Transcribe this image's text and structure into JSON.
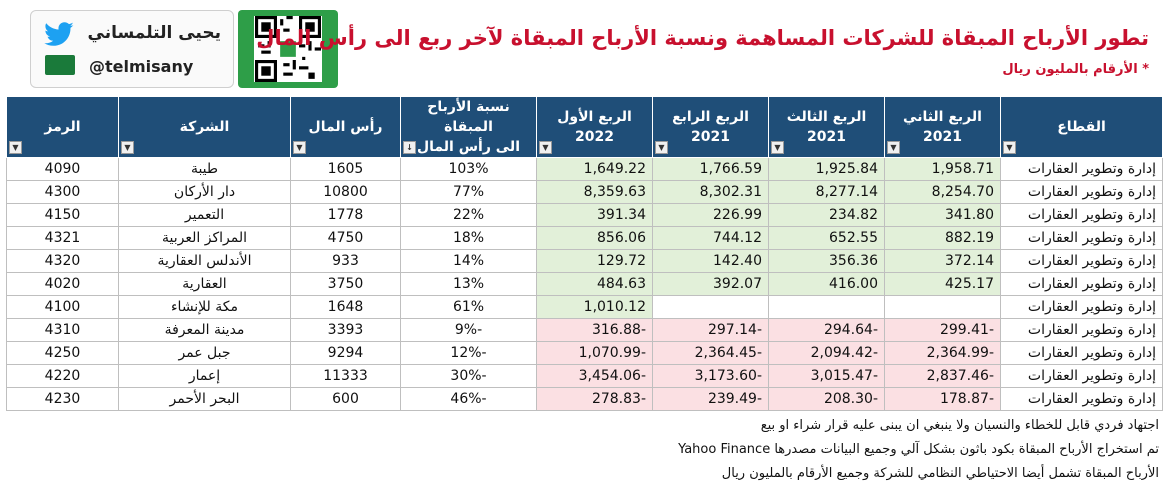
{
  "header": {
    "title": "تطور الأرباح المبقاة للشركات المساهمة ونسبة الأرباح المبقاة لآخر ربع الى رأس المال",
    "subtitle": "* الأرقام بالمليون ريال",
    "logo_name": "يحيى التلمساني",
    "logo_handle": "@telmisany"
  },
  "table": {
    "headers": {
      "sector": "القطاع",
      "q2_label": "الربع الثاني",
      "q2_year": "2021",
      "q3_label": "الربع الثالث",
      "q3_year": "2021",
      "q4_label": "الربع الرابع",
      "q4_year": "2021",
      "q1_label": "الربع الأول",
      "q1_year": "2022",
      "ratio_top": "نسبة الأرباح المبقاة",
      "ratio_bot": "الى رأس المال",
      "capital": "رأس المال",
      "company": "الشركة",
      "code": "الرمز"
    },
    "rows": [
      {
        "sector": "إدارة وتطوير العقارات",
        "q2": "1,958.71",
        "q3": "1,925.84",
        "q4": "1,766.59",
        "q1": "1,649.22",
        "ratio": "103%",
        "capital": "1605",
        "company": "طيبة",
        "code": "4090"
      },
      {
        "sector": "إدارة وتطوير العقارات",
        "q2": "8,254.70",
        "q3": "8,277.14",
        "q4": "8,302.31",
        "q1": "8,359.63",
        "ratio": "77%",
        "capital": "10800",
        "company": "دار الأركان",
        "code": "4300"
      },
      {
        "sector": "إدارة وتطوير العقارات",
        "q2": "341.80",
        "q3": "234.82",
        "q4": "226.99",
        "q1": "391.34",
        "ratio": "22%",
        "capital": "1778",
        "company": "التعمير",
        "code": "4150"
      },
      {
        "sector": "إدارة وتطوير العقارات",
        "q2": "882.19",
        "q3": "652.55",
        "q4": "744.12",
        "q1": "856.06",
        "ratio": "18%",
        "capital": "4750",
        "company": "المراكز العربية",
        "code": "4321"
      },
      {
        "sector": "إدارة وتطوير العقارات",
        "q2": "372.14",
        "q3": "356.36",
        "q4": "142.40",
        "q1": "129.72",
        "ratio": "14%",
        "capital": "933",
        "company": "الأندلس العقارية",
        "code": "4320"
      },
      {
        "sector": "إدارة وتطوير العقارات",
        "q2": "425.17",
        "q3": "416.00",
        "q4": "392.07",
        "q1": "484.63",
        "ratio": "13%",
        "capital": "3750",
        "company": "العقارية",
        "code": "4020"
      },
      {
        "sector": "إدارة وتطوير العقارات",
        "q2": "",
        "q3": "",
        "q4": "",
        "q1": "1,010.12",
        "ratio": "61%",
        "capital": "1648",
        "company": "مكة للإنشاء",
        "code": "4100"
      },
      {
        "sector": "إدارة وتطوير العقارات",
        "q2": "-299.41",
        "q3": "-294.64",
        "q4": "-297.14",
        "q1": "-316.88",
        "ratio": "-9%",
        "capital": "3393",
        "company": "مدينة المعرفة",
        "code": "4310"
      },
      {
        "sector": "إدارة وتطوير العقارات",
        "q2": "-2,364.99",
        "q3": "-2,094.42",
        "q4": "-2,364.45",
        "q1": "-1,070.99",
        "ratio": "-12%",
        "capital": "9294",
        "company": "جبل عمر",
        "code": "4250"
      },
      {
        "sector": "إدارة وتطوير العقارات",
        "q2": "-2,837.46",
        "q3": "-3,015.47",
        "q4": "-3,173.60",
        "q1": "-3,454.06",
        "ratio": "-30%",
        "capital": "11333",
        "company": "إعمار",
        "code": "4220"
      },
      {
        "sector": "إدارة وتطوير العقارات",
        "q2": "-178.87",
        "q3": "-208.30",
        "q4": "-239.49",
        "q1": "-278.83",
        "ratio": "-46%",
        "capital": "600",
        "company": "البحر الأحمر",
        "code": "4230"
      }
    ]
  },
  "footer": {
    "line1": "اجتهاد فردي قابل للخطاء والنسيان ولا ينبغي ان يبنى عليه قرار شراء او بيع",
    "line2": "تم استخراج الأرباح المبقاة بكود باثون بشكل آلي وجميع البيانات مصدرها Yahoo Finance",
    "line3": "الأرباح المبقاة تشمل أيضا الاحتياطي النظامي للشركة وجميع الأرقام بالمليون ريال"
  },
  "colors": {
    "header_bg": "#1f4e78",
    "positive_fill": "#e2f0d9",
    "negative_fill": "#fbe0e3",
    "title_red": "#c8102e",
    "qr_green": "#2e9e48"
  }
}
